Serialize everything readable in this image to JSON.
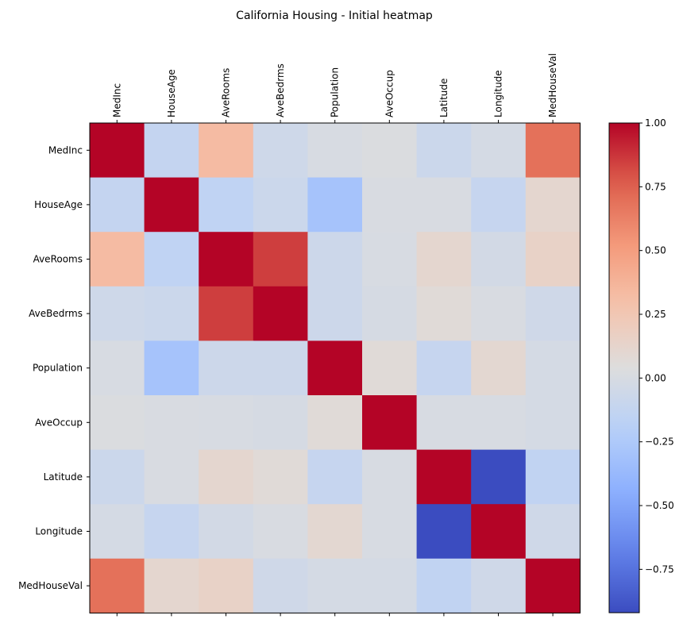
{
  "chart_data": {
    "type": "heatmap",
    "title": "California Housing - Initial heatmap",
    "colormap": "coolwarm",
    "labels": [
      "MedInc",
      "HouseAge",
      "AveRooms",
      "AveBedrms",
      "Population",
      "AveOccup",
      "Latitude",
      "Longitude",
      "MedHouseVal"
    ],
    "matrix": [
      [
        1.0,
        -0.12,
        0.33,
        -0.06,
        0.0,
        0.02,
        -0.08,
        -0.02,
        0.69
      ],
      [
        -0.12,
        1.0,
        -0.15,
        -0.08,
        -0.3,
        0.01,
        0.01,
        -0.11,
        0.11
      ],
      [
        0.33,
        -0.15,
        1.0,
        0.85,
        -0.07,
        -0.0,
        0.11,
        -0.03,
        0.15
      ],
      [
        -0.06,
        -0.08,
        0.85,
        1.0,
        -0.07,
        -0.01,
        0.07,
        0.01,
        -0.05
      ],
      [
        0.0,
        -0.3,
        -0.07,
        -0.07,
        1.0,
        0.07,
        -0.11,
        0.1,
        -0.02
      ],
      [
        0.02,
        0.01,
        -0.0,
        -0.01,
        0.07,
        1.0,
        0.0,
        0.0,
        -0.02
      ],
      [
        -0.08,
        0.01,
        0.11,
        0.07,
        -0.11,
        0.0,
        1.0,
        -0.92,
        -0.14
      ],
      [
        -0.02,
        -0.11,
        -0.03,
        0.01,
        0.1,
        0.0,
        -0.92,
        1.0,
        -0.05
      ],
      [
        0.69,
        0.11,
        0.15,
        -0.05,
        -0.02,
        -0.02,
        -0.14,
        -0.05,
        1.0
      ]
    ],
    "colorbar": {
      "vmin": -0.92,
      "vmax": 1.0,
      "ticks": [
        1.0,
        0.75,
        0.5,
        0.25,
        0.0,
        -0.25,
        -0.5,
        -0.75
      ],
      "tick_labels": [
        "1.00",
        "0.75",
        "0.50",
        "0.25",
        "0.00",
        "−0.25",
        "−0.50",
        "−0.75"
      ]
    },
    "grid": false,
    "xaxis_position": "top"
  }
}
